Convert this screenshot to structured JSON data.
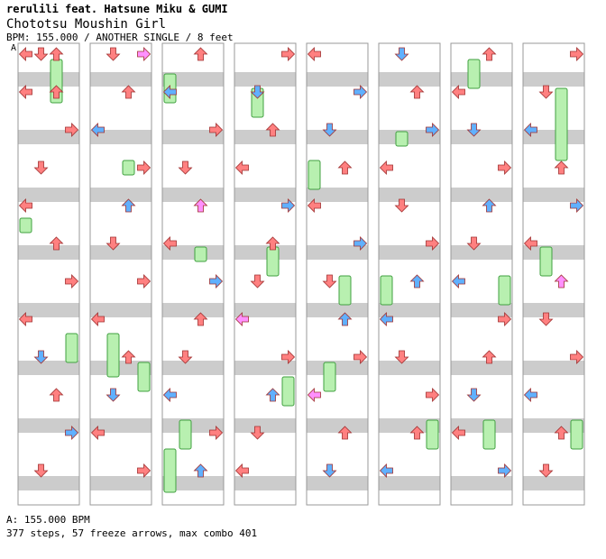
{
  "header": {
    "artist": "rerulili feat. Hatsune Miku & GUMI",
    "title": "Chototsu Moushin Girl",
    "info": "BPM: 155.000 / ANOTHER SINGLE / 8 feet"
  },
  "bpm_marker": "A",
  "footer": {
    "bpm_line": "A: 155.000 BPM",
    "stats_line": "377 steps, 57 freeze arrows, max combo 401"
  },
  "colors": {
    "stripe_gray": "#cccccc",
    "column_border": "#999999",
    "quarter_note": "#ff8080",
    "eighth_note": "#60b0ff",
    "sixteenth_note": "#ff90ff",
    "freeze": "#b8f0b0",
    "freeze_border": "#40a040"
  },
  "chart_data": {
    "type": "step-chart",
    "columns": 8,
    "lanes": [
      "left",
      "down",
      "up",
      "right"
    ],
    "notes": [
      [
        [
          0,
          0,
          "r"
        ],
        [
          0,
          1,
          "r"
        ],
        [
          0,
          2,
          "r"
        ],
        [
          1,
          0,
          "r"
        ],
        [
          1,
          2,
          "r"
        ],
        [
          2,
          3,
          "r"
        ],
        [
          3,
          1,
          "r"
        ],
        [
          4,
          0,
          "r"
        ],
        [
          5,
          2,
          "r"
        ],
        [
          6,
          3,
          "r"
        ],
        [
          7,
          0,
          "r"
        ],
        [
          8,
          1,
          "b"
        ],
        [
          9,
          2,
          "r"
        ],
        [
          10,
          3,
          "b"
        ],
        [
          11,
          1,
          "r"
        ]
      ],
      [
        [
          0,
          1,
          "r"
        ],
        [
          0,
          3,
          "p"
        ],
        [
          1,
          2,
          "r"
        ],
        [
          2,
          0,
          "b"
        ],
        [
          3,
          3,
          "r"
        ],
        [
          4,
          2,
          "b"
        ],
        [
          5,
          1,
          "r"
        ],
        [
          6,
          3,
          "r"
        ],
        [
          7,
          0,
          "r"
        ],
        [
          8,
          2,
          "r"
        ],
        [
          9,
          1,
          "b"
        ],
        [
          10,
          0,
          "r"
        ],
        [
          11,
          3,
          "r"
        ]
      ],
      [
        [
          0,
          2,
          "r"
        ],
        [
          1,
          0,
          "b"
        ],
        [
          2,
          3,
          "r"
        ],
        [
          3,
          1,
          "r"
        ],
        [
          4,
          2,
          "p"
        ],
        [
          5,
          0,
          "r"
        ],
        [
          6,
          3,
          "b"
        ],
        [
          7,
          2,
          "r"
        ],
        [
          8,
          1,
          "r"
        ],
        [
          9,
          0,
          "b"
        ],
        [
          10,
          3,
          "r"
        ],
        [
          11,
          2,
          "b"
        ]
      ],
      [
        [
          0,
          3,
          "r"
        ],
        [
          1,
          1,
          "b"
        ],
        [
          2,
          2,
          "r"
        ],
        [
          3,
          0,
          "r"
        ],
        [
          4,
          3,
          "b"
        ],
        [
          5,
          2,
          "r"
        ],
        [
          6,
          1,
          "r"
        ],
        [
          7,
          0,
          "p"
        ],
        [
          8,
          3,
          "r"
        ],
        [
          9,
          2,
          "b"
        ],
        [
          10,
          1,
          "r"
        ],
        [
          11,
          0,
          "r"
        ]
      ],
      [
        [
          0,
          0,
          "r"
        ],
        [
          1,
          3,
          "b"
        ],
        [
          2,
          1,
          "b"
        ],
        [
          3,
          2,
          "r"
        ],
        [
          4,
          0,
          "r"
        ],
        [
          5,
          3,
          "b"
        ],
        [
          6,
          1,
          "r"
        ],
        [
          7,
          2,
          "b"
        ],
        [
          8,
          3,
          "r"
        ],
        [
          9,
          0,
          "p"
        ],
        [
          10,
          2,
          "r"
        ],
        [
          11,
          1,
          "b"
        ]
      ],
      [
        [
          0,
          1,
          "b"
        ],
        [
          1,
          2,
          "r"
        ],
        [
          2,
          3,
          "b"
        ],
        [
          3,
          0,
          "r"
        ],
        [
          4,
          1,
          "r"
        ],
        [
          5,
          3,
          "r"
        ],
        [
          6,
          2,
          "b"
        ],
        [
          7,
          0,
          "b"
        ],
        [
          8,
          1,
          "r"
        ],
        [
          9,
          3,
          "r"
        ],
        [
          10,
          2,
          "r"
        ],
        [
          11,
          0,
          "b"
        ]
      ],
      [
        [
          0,
          2,
          "r"
        ],
        [
          1,
          0,
          "r"
        ],
        [
          2,
          1,
          "b"
        ],
        [
          3,
          3,
          "r"
        ],
        [
          4,
          2,
          "b"
        ],
        [
          5,
          1,
          "r"
        ],
        [
          6,
          0,
          "b"
        ],
        [
          7,
          3,
          "r"
        ],
        [
          8,
          2,
          "r"
        ],
        [
          9,
          1,
          "b"
        ],
        [
          10,
          0,
          "r"
        ],
        [
          11,
          3,
          "b"
        ]
      ],
      [
        [
          0,
          3,
          "r"
        ],
        [
          1,
          1,
          "r"
        ],
        [
          2,
          0,
          "b"
        ],
        [
          3,
          2,
          "r"
        ],
        [
          4,
          3,
          "b"
        ],
        [
          5,
          0,
          "r"
        ],
        [
          6,
          2,
          "p"
        ],
        [
          7,
          1,
          "r"
        ],
        [
          8,
          3,
          "r"
        ],
        [
          9,
          0,
          "b"
        ],
        [
          10,
          2,
          "r"
        ],
        [
          11,
          1,
          "r"
        ]
      ]
    ],
    "freezes": [
      [
        [
          1,
          4,
          2,
          "g"
        ],
        [
          12,
          13,
          0,
          "g"
        ],
        [
          20,
          22,
          3,
          "g"
        ]
      ],
      [
        [
          8,
          9,
          2,
          "g"
        ],
        [
          20,
          23,
          1,
          "g"
        ],
        [
          22,
          24,
          3,
          "g"
        ]
      ],
      [
        [
          2,
          4,
          0,
          "g"
        ],
        [
          14,
          15,
          2,
          "g"
        ],
        [
          26,
          28,
          1,
          "g"
        ],
        [
          28,
          31,
          0,
          "g"
        ]
      ],
      [
        [
          3,
          5,
          1,
          "g"
        ],
        [
          14,
          16,
          2,
          "g"
        ],
        [
          23,
          25,
          3,
          "g"
        ]
      ],
      [
        [
          8,
          10,
          0,
          "g"
        ],
        [
          16,
          18,
          2,
          "g"
        ],
        [
          22,
          24,
          1,
          "g"
        ]
      ],
      [
        [
          6,
          7,
          1,
          "g"
        ],
        [
          16,
          18,
          0,
          "g"
        ],
        [
          26,
          28,
          3,
          "g"
        ]
      ],
      [
        [
          1,
          3,
          1,
          "g"
        ],
        [
          16,
          18,
          3,
          "g"
        ],
        [
          26,
          28,
          2,
          "g"
        ]
      ],
      [
        [
          3,
          8,
          2,
          "g"
        ],
        [
          14,
          16,
          1,
          "g"
        ],
        [
          26,
          28,
          3,
          "g"
        ]
      ]
    ]
  }
}
